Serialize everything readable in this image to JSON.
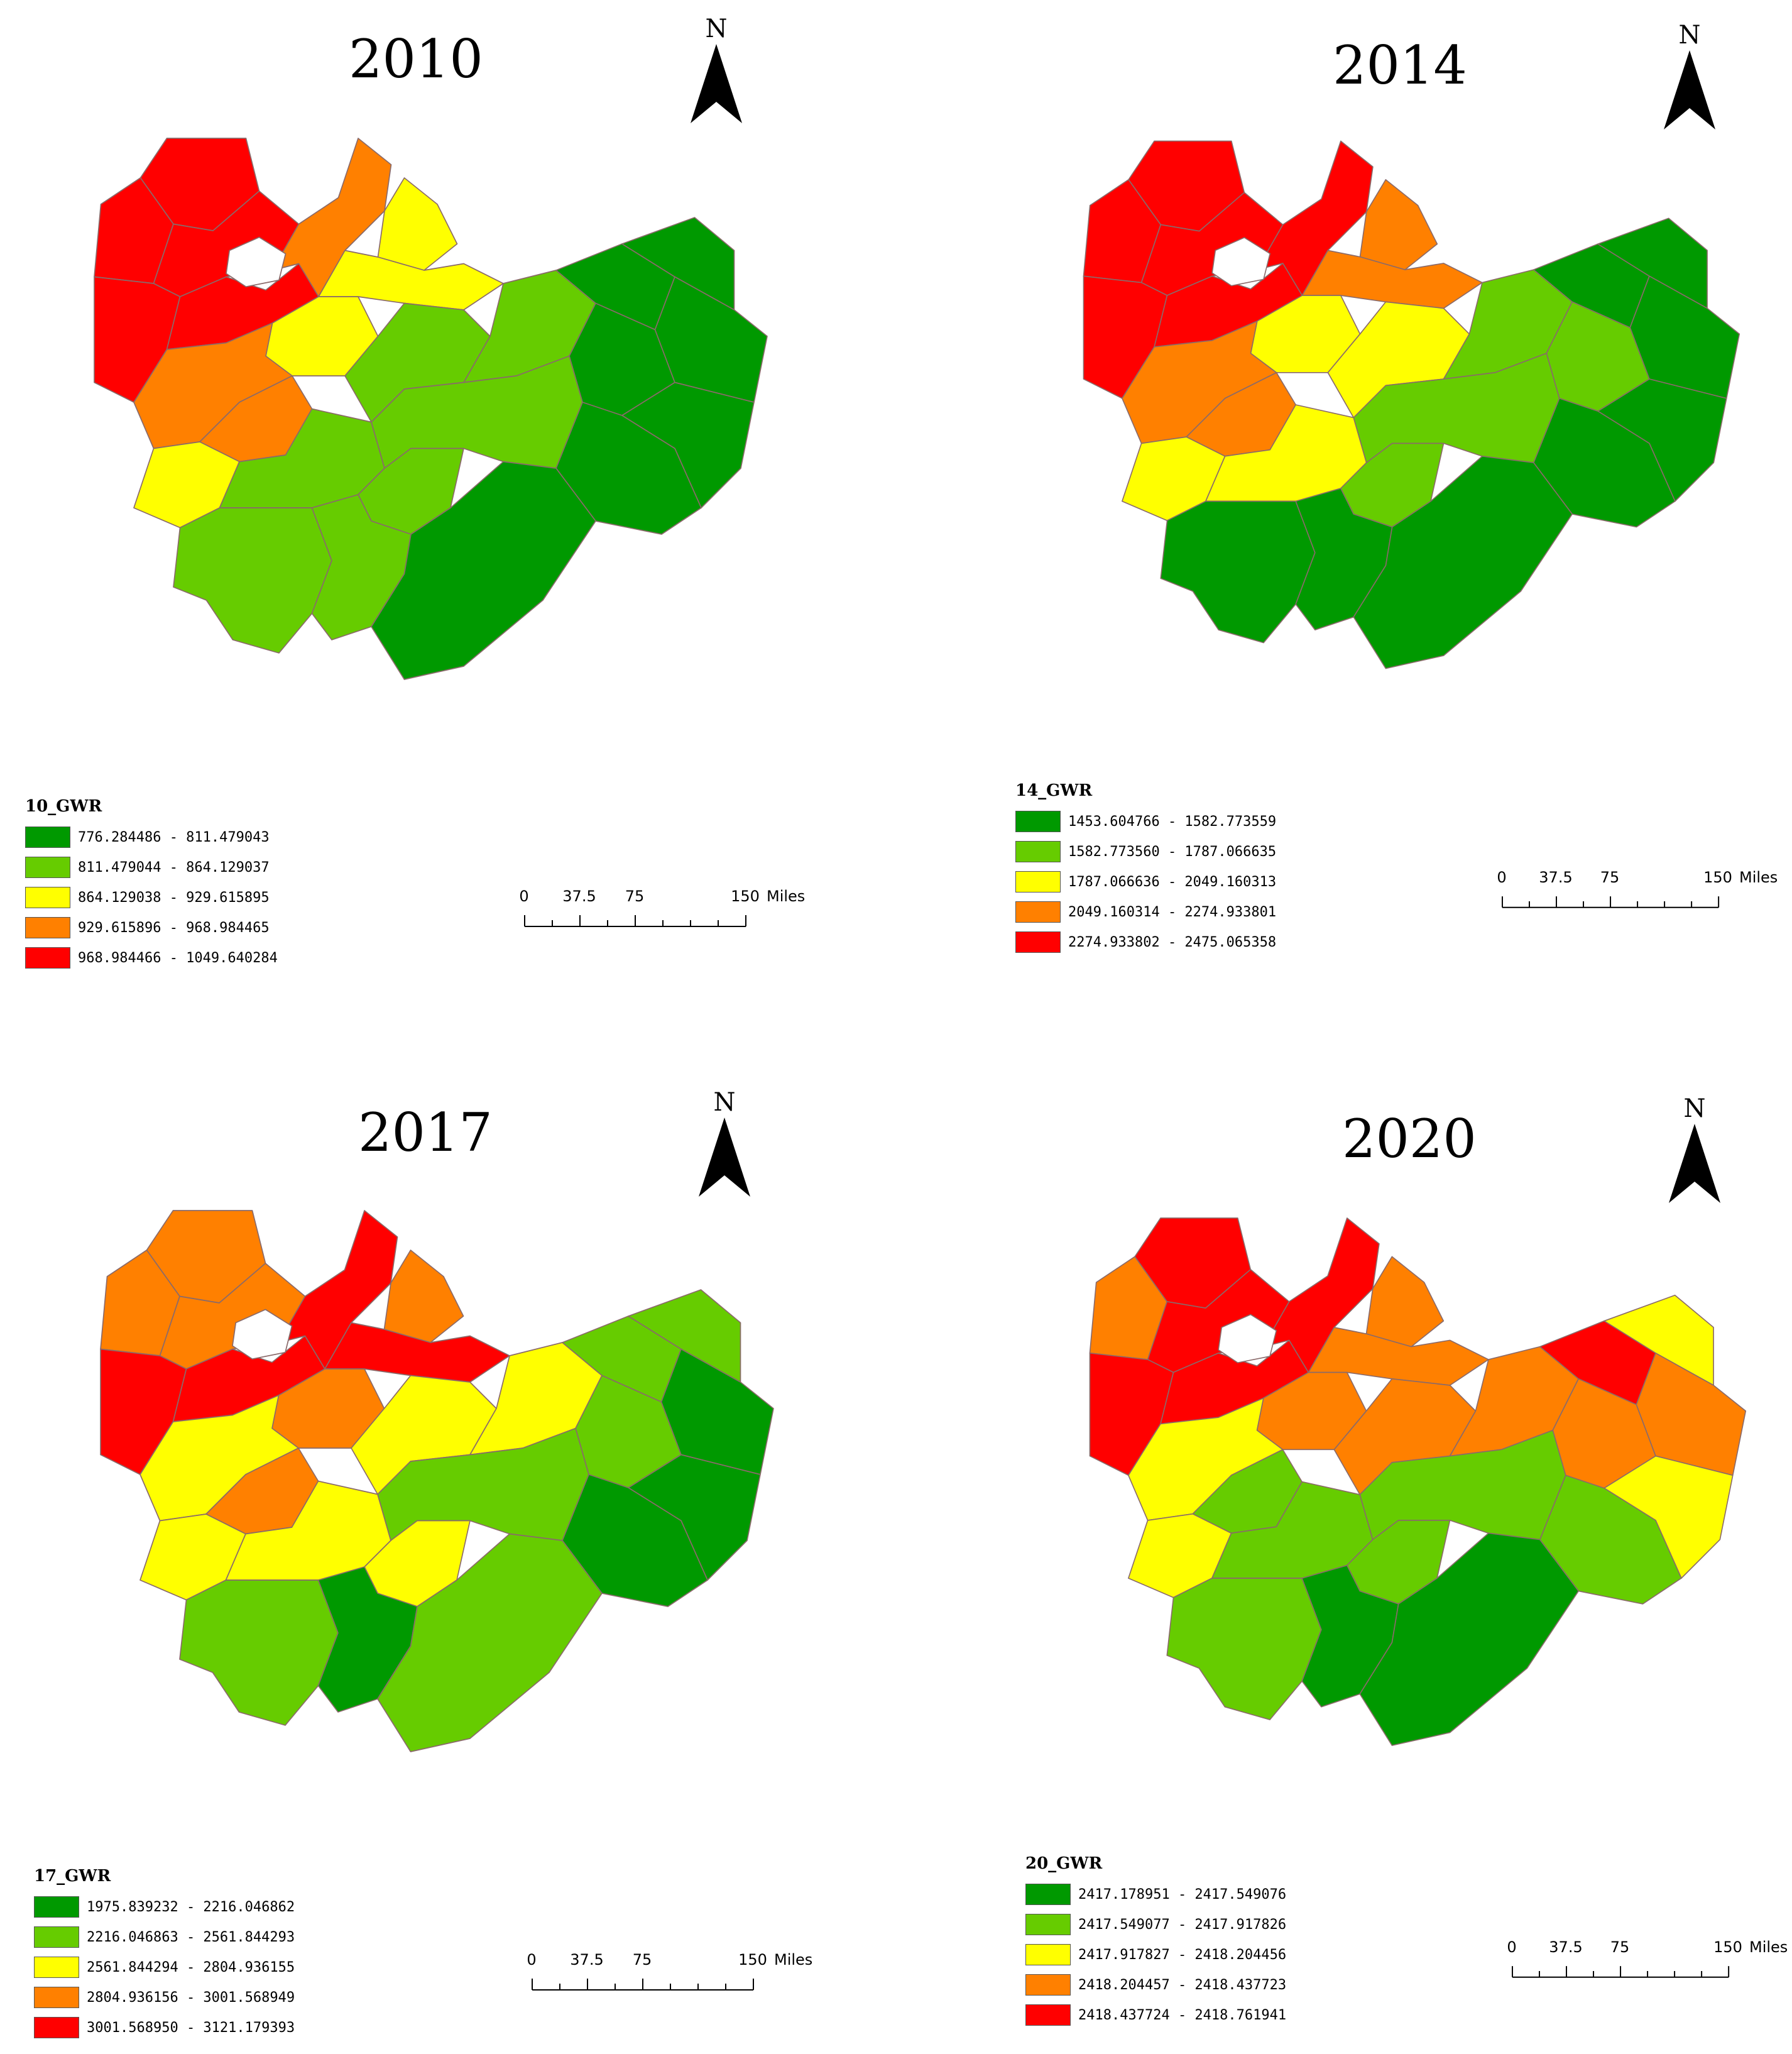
{
  "palette": {
    "dark_green": "#009900",
    "light_green": "#66cc00",
    "yellow": "#ffff00",
    "orange": "#ff8000",
    "red": "#ff0000"
  },
  "north_label": "N",
  "scale": {
    "ticks": [
      "0",
      "37.5",
      "75",
      "150"
    ],
    "unit": "Miles"
  },
  "panels": [
    {
      "year": "2010",
      "legend_title": "10_GWR",
      "classes": [
        {
          "label": "776.284486 - 811.479043",
          "color": "#009900"
        },
        {
          "label": "811.479044 - 864.129037",
          "color": "#66cc00"
        },
        {
          "label": "864.129038 - 929.615895",
          "color": "#ffff00"
        },
        {
          "label": "929.615896 - 968.984465",
          "color": "#ff8000"
        },
        {
          "label": "968.984466 - 1049.640284",
          "color": "#ff0000"
        }
      ],
      "region_classes": [
        4,
        4,
        4,
        4,
        4,
        3,
        2,
        2,
        2,
        3,
        3,
        2,
        1,
        1,
        1,
        0,
        0,
        0,
        0,
        0,
        0,
        1,
        1,
        1,
        1,
        0
      ]
    },
    {
      "year": "2014",
      "legend_title": "14_GWR",
      "classes": [
        {
          "label": "1453.604766 - 1582.773559",
          "color": "#009900"
        },
        {
          "label": "1582.773560 - 1787.066635",
          "color": "#66cc00"
        },
        {
          "label": "1787.066636 - 2049.160313",
          "color": "#ffff00"
        },
        {
          "label": "2049.160314 - 2274.933801",
          "color": "#ff8000"
        },
        {
          "label": "2274.933802 - 2475.065358",
          "color": "#ff0000"
        }
      ],
      "region_classes": [
        4,
        4,
        4,
        4,
        4,
        4,
        3,
        3,
        2,
        3,
        3,
        2,
        2,
        2,
        1,
        0,
        1,
        0,
        0,
        0,
        0,
        1,
        1,
        0,
        0,
        0
      ]
    },
    {
      "year": "2017",
      "legend_title": "17_GWR",
      "classes": [
        {
          "label": "1975.839232 - 2216.046862",
          "color": "#009900"
        },
        {
          "label": "2216.046863 - 2561.844293",
          "color": "#66cc00"
        },
        {
          "label": "2561.844294 - 2804.936155",
          "color": "#ffff00"
        },
        {
          "label": "2804.936156 - 3001.568949",
          "color": "#ff8000"
        },
        {
          "label": "3001.568950 - 3121.179393",
          "color": "#ff0000"
        }
      ],
      "region_classes": [
        3,
        3,
        3,
        4,
        4,
        4,
        3,
        4,
        3,
        2,
        3,
        2,
        2,
        2,
        2,
        1,
        1,
        1,
        0,
        0,
        0,
        1,
        2,
        1,
        0,
        1
      ]
    },
    {
      "year": "2020",
      "legend_title": "20_GWR",
      "classes": [
        {
          "label": "2417.178951 - 2417.549076",
          "color": "#009900"
        },
        {
          "label": "2417.549077 - 2417.917826",
          "color": "#66cc00"
        },
        {
          "label": "2417.917827 - 2418.204456",
          "color": "#ffff00"
        },
        {
          "label": "2418.204457 - 2418.437723",
          "color": "#ff8000"
        },
        {
          "label": "2418.437724 - 2418.761941",
          "color": "#ff0000"
        }
      ],
      "region_classes": [
        4,
        3,
        4,
        4,
        4,
        4,
        3,
        3,
        3,
        2,
        1,
        2,
        1,
        3,
        3,
        4,
        3,
        2,
        3,
        2,
        1,
        1,
        1,
        1,
        0,
        0
      ]
    }
  ]
}
